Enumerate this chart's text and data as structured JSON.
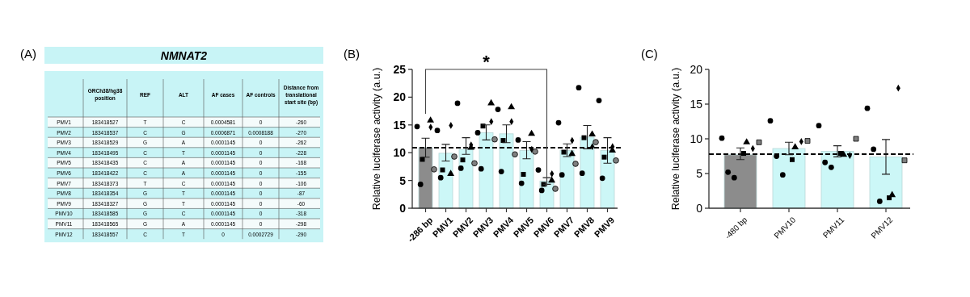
{
  "chart_data": [
    {
      "type": "other",
      "title": "NMNAT2",
      "annotations": [
        "(A)"
      ],
      "categories": [
        "GRCh38/hg38 position",
        "REF",
        "ALT",
        "AF cases",
        "AF controls",
        "Distance from translational start site (bp)"
      ],
      "y_categories": [
        "PMV1",
        "PMV2",
        "PMV3",
        "PMV4",
        "PMV5",
        "PMV6",
        "PMV7",
        "PMV8",
        "PMV9",
        "PMV10",
        "PMV11",
        "PMV12"
      ],
      "cell_labels": [
        [
          "183418527",
          "T",
          "C",
          "0.0004581",
          "0",
          "-260"
        ],
        [
          "183418537",
          "C",
          "G",
          "0.0006871",
          "0.0008188",
          "-270"
        ],
        [
          "183418529",
          "G",
          "A",
          "0.0001145",
          "0",
          "-262"
        ],
        [
          "183418495",
          "C",
          "T",
          "0.0001145",
          "0",
          "-228"
        ],
        [
          "183418435",
          "C",
          "A",
          "0.0001145",
          "0",
          "-168"
        ],
        [
          "183418422",
          "C",
          "A",
          "0.0001145",
          "0",
          "-155"
        ],
        [
          "183418373",
          "T",
          "C",
          "0.0001145",
          "0",
          "-106"
        ],
        [
          "183418354",
          "G",
          "T",
          "0.0001145",
          "0",
          "-87"
        ],
        [
          "183418327",
          "G",
          "T",
          "0.0001145",
          "0",
          "-60"
        ],
        [
          "183418585",
          "G",
          "C",
          "0.0001145",
          "0",
          "-318"
        ],
        [
          "183418565",
          "G",
          "A",
          "0.0001145",
          "0",
          "-298"
        ],
        [
          "183418557",
          "C",
          "T",
          "0",
          "0.0002729",
          "-290"
        ]
      ]
    },
    {
      "type": "bar",
      "ylabel": "Relative luciferase activity (a.u.)",
      "annotations": [
        "(B)",
        "*"
      ],
      "categories": [
        "-286 bp",
        "PMV1",
        "PMV2",
        "PMV3",
        "PMV4",
        "PMV5",
        "PMV6",
        "PMV7",
        "PMV8",
        "PMV9"
      ],
      "ylim": [
        0,
        25
      ],
      "yticks": [
        0,
        5,
        10,
        15,
        20,
        25
      ],
      "ref_lines": [
        {
          "axis": "y",
          "value": 10.9,
          "color": "#000000",
          "line_style": "dashed"
        }
      ],
      "series": [
        {
          "type": "bar",
          "values": [
            10.9,
            9.9,
            10.6,
            13.6,
            13.4,
            10.4,
            4.9,
            10.4,
            12.8,
            10.4
          ],
          "colors": [
            "#8c8c8c",
            "#ccf7f7",
            "#ccf7f7",
            "#ccf7f7",
            "#ccf7f7",
            "#ccf7f7",
            "#ccf7f7",
            "#ccf7f7",
            "#ccf7f7",
            "#ccf7f7"
          ],
          "errors": [
            [
              9.2,
              12.6
            ],
            [
              8.5,
              11.5
            ],
            [
              9.7,
              12.7
            ],
            [
              12.3,
              15.0
            ],
            [
              11.8,
              15.0
            ],
            [
              8.9,
              12.0
            ],
            [
              4.3,
              5.5
            ],
            [
              9.3,
              11.6
            ],
            [
              10.7,
              14.9
            ],
            [
              8.1,
              12.7
            ]
          ]
        },
        {
          "type": "scatter",
          "marker": "circle",
          "color": "#000000",
          "x": [
            "-286 bp",
            "-286 bp",
            "PMV1",
            "PMV1",
            "PMV2",
            "PMV2",
            "PMV3",
            "PMV3",
            "PMV4",
            "PMV4",
            "PMV5",
            "PMV5",
            "PMV6",
            "PMV6",
            "PMV7",
            "PMV7",
            "PMV8",
            "PMV8",
            "PMV9",
            "PMV9"
          ],
          "values": [
            14.7,
            4.3,
            14.0,
            5.5,
            18.9,
            7.2,
            13.6,
            7.1,
            17.8,
            6.6,
            12.3,
            4.5,
            6.9,
            3.2,
            15.4,
            6.0,
            21.7,
            6.3,
            19.4,
            5.4
          ]
        },
        {
          "type": "scatter",
          "marker": "square",
          "color": "#000000",
          "x": [
            "-286 bp",
            "PMV1",
            "PMV2",
            "PMV3",
            "PMV4",
            "PMV5",
            "PMV6",
            "PMV7",
            "PMV8",
            "PMV9"
          ],
          "values": [
            8.8,
            6.9,
            8.7,
            14.8,
            12.2,
            6.1,
            4.3,
            10.1,
            12.7,
            9.2
          ]
        },
        {
          "type": "scatter",
          "marker": "triangle",
          "color": "#000000",
          "x": [
            "-286 bp",
            "PMV1",
            "PMV2",
            "PMV3",
            "PMV4",
            "PMV5",
            "PMV6",
            "PMV7",
            "PMV8",
            "PMV9"
          ],
          "values": [
            15.8,
            6.2,
            10.9,
            18.9,
            18.2,
            13.4,
            5.0,
            9.8,
            13.3,
            10.4
          ]
        },
        {
          "type": "scatter",
          "marker": "diamond",
          "color": "#000000",
          "x": [
            "-286 bp",
            "PMV1",
            "PMV2",
            "PMV3",
            "PMV4",
            "PMV5",
            "PMV6",
            "PMV7",
            "PMV8",
            "PMV9"
          ],
          "values": [
            14.6,
            14.9,
            11.4,
            15.6,
            15.6,
            10.6,
            6.2,
            12.2,
            11.1,
            11.1
          ]
        },
        {
          "type": "scatter",
          "marker": "circle",
          "color": "#7f7f7f",
          "x": [
            "-286 bp",
            "PMV1",
            "PMV2",
            "PMV3",
            "PMV4",
            "PMV5",
            "PMV6",
            "PMV7",
            "PMV8",
            "PMV9"
          ],
          "values": [
            7.0,
            9.3,
            8.1,
            12.4,
            9.7,
            10.2,
            3.5,
            8.0,
            11.9,
            8.6
          ]
        }
      ]
    },
    {
      "type": "bar",
      "ylabel": "Relative luciferase activity (a.u.)",
      "annotations": [
        "(C)"
      ],
      "categories": [
        "-480 bp",
        "PMV10",
        "PMV11",
        "PMV12"
      ],
      "ylim": [
        0,
        20
      ],
      "yticks": [
        0,
        5,
        10,
        15,
        20
      ],
      "ref_lines": [
        {
          "axis": "y",
          "value": 7.8,
          "color": "#000000",
          "line_style": "dashed"
        }
      ],
      "series": [
        {
          "type": "bar",
          "values": [
            7.7,
            8.6,
            8.2,
            7.4
          ],
          "colors": [
            "#8c8c8c",
            "#ccf7f7",
            "#ccf7f7",
            "#ccf7f7"
          ],
          "errors": [
            [
              7.0,
              8.7
            ],
            [
              7.7,
              9.5
            ],
            [
              7.4,
              9.0
            ],
            [
              4.9,
              9.9
            ]
          ]
        },
        {
          "type": "scatter",
          "marker": "circle",
          "color": "#000000",
          "x": [
            "-480 bp",
            "-480 bp",
            "-480 bp",
            "PMV10",
            "PMV10",
            "PMV10",
            "PMV11",
            "PMV11",
            "PMV11",
            "PMV12",
            "PMV12",
            "PMV12"
          ],
          "values": [
            10.1,
            5.2,
            4.4,
            12.6,
            7.5,
            4.8,
            11.9,
            6.6,
            5.9,
            14.4,
            8.5,
            1.0
          ]
        },
        {
          "type": "scatter",
          "marker": "square",
          "color": "#000000",
          "x": [
            "-480 bp",
            "PMV10",
            "PMV11",
            "PMV12"
          ],
          "values": [
            7.9,
            7.0,
            7.9,
            1.5
          ]
        },
        {
          "type": "scatter",
          "marker": "triangle",
          "color": "#000000",
          "x": [
            "-480 bp",
            "PMV10",
            "PMV11",
            "PMV12"
          ],
          "values": [
            9.5,
            8.8,
            7.7,
            1.9
          ]
        },
        {
          "type": "scatter",
          "marker": "diamond",
          "color": "#000000",
          "x": [
            "-480 bp",
            "PMV10",
            "PMV11",
            "PMV12"
          ],
          "values": [
            8.6,
            9.6,
            7.6,
            17.3
          ]
        },
        {
          "type": "scatter",
          "marker": "square",
          "color": "#7f7f7f",
          "x": [
            "-480 bp",
            "PMV10",
            "PMV11",
            "PMV12"
          ],
          "values": [
            9.5,
            9.7,
            10.0,
            6.9
          ]
        }
      ]
    }
  ]
}
